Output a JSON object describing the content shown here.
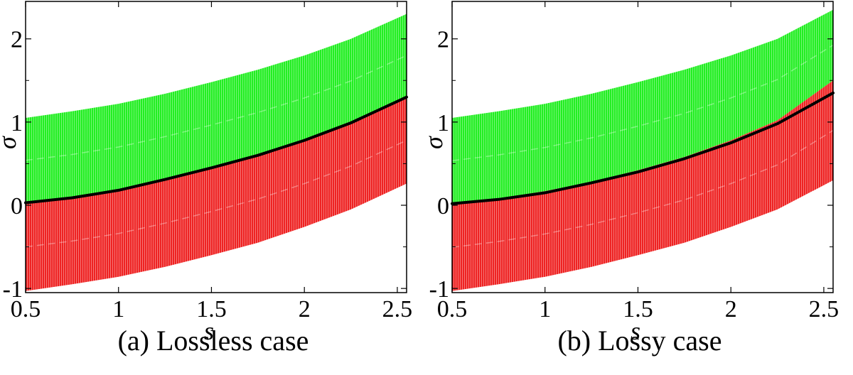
{
  "colors": {
    "green": "#22ee22",
    "red": "#ee2222",
    "curve": "#000000"
  },
  "panels": [
    {
      "caption": "(a) Lossless case",
      "chart_data": {
        "type": "area",
        "xlabel": "s",
        "ylabel": "σ",
        "xlim": [
          0.5,
          2.55
        ],
        "ylim": [
          -1.05,
          2.45
        ],
        "xticks": [
          0.5,
          1,
          1.5,
          2,
          2.5
        ],
        "xtick_labels": [
          "0.5",
          "1",
          "1.5",
          "2",
          "2.5"
        ],
        "yticks": [
          -1,
          0,
          1,
          2
        ],
        "ytick_labels": [
          "-1",
          "0",
          "1",
          "2"
        ],
        "x": [
          0.5,
          0.75,
          1.0,
          1.25,
          1.5,
          1.75,
          2.0,
          2.25,
          2.55
        ],
        "series": [
          {
            "color": "green",
            "upper": [
              1.05,
              1.13,
              1.22,
              1.34,
              1.48,
              1.63,
              1.8,
              2.0,
              2.3
            ],
            "lower": [
              0.03,
              0.09,
              0.18,
              0.31,
              0.45,
              0.6,
              0.78,
              0.99,
              1.3
            ]
          },
          {
            "color": "red",
            "upper": [
              0.03,
              0.09,
              0.18,
              0.31,
              0.45,
              0.6,
              0.78,
              0.99,
              1.3
            ],
            "lower": [
              -1.03,
              -0.95,
              -0.86,
              -0.74,
              -0.6,
              -0.45,
              -0.26,
              -0.05,
              0.26
            ]
          },
          {
            "color": "curve",
            "line": [
              0.03,
              0.09,
              0.18,
              0.31,
              0.45,
              0.6,
              0.78,
              0.99,
              1.3
            ]
          }
        ]
      }
    },
    {
      "caption": "(b) Lossy case",
      "chart_data": {
        "type": "area",
        "xlabel": "s",
        "ylabel": "σ",
        "xlim": [
          0.5,
          2.55
        ],
        "ylim": [
          -1.05,
          2.45
        ],
        "xticks": [
          0.5,
          1,
          1.5,
          2,
          2.5
        ],
        "xtick_labels": [
          "0.5",
          "1",
          "1.5",
          "2",
          "2.5"
        ],
        "yticks": [
          -1,
          0,
          1,
          2
        ],
        "ytick_labels": [
          "-1",
          "0",
          "1",
          "2"
        ],
        "x": [
          0.5,
          0.75,
          1.0,
          1.25,
          1.5,
          1.75,
          2.0,
          2.25,
          2.55
        ],
        "series": [
          {
            "color": "green",
            "upper": [
              1.05,
              1.13,
              1.22,
              1.34,
              1.48,
              1.63,
              1.8,
              2.0,
              2.35
            ],
            "lower": [
              0.02,
              0.08,
              0.17,
              0.28,
              0.42,
              0.58,
              0.78,
              1.02,
              1.5
            ]
          },
          {
            "color": "red",
            "upper": [
              0.02,
              0.08,
              0.17,
              0.28,
              0.42,
              0.58,
              0.78,
              1.02,
              1.5
            ],
            "lower": [
              -1.03,
              -0.95,
              -0.86,
              -0.74,
              -0.6,
              -0.45,
              -0.26,
              -0.05,
              0.3
            ]
          },
          {
            "color": "curve",
            "line": [
              0.02,
              0.07,
              0.15,
              0.27,
              0.4,
              0.56,
              0.75,
              0.98,
              1.35
            ]
          }
        ]
      }
    }
  ]
}
